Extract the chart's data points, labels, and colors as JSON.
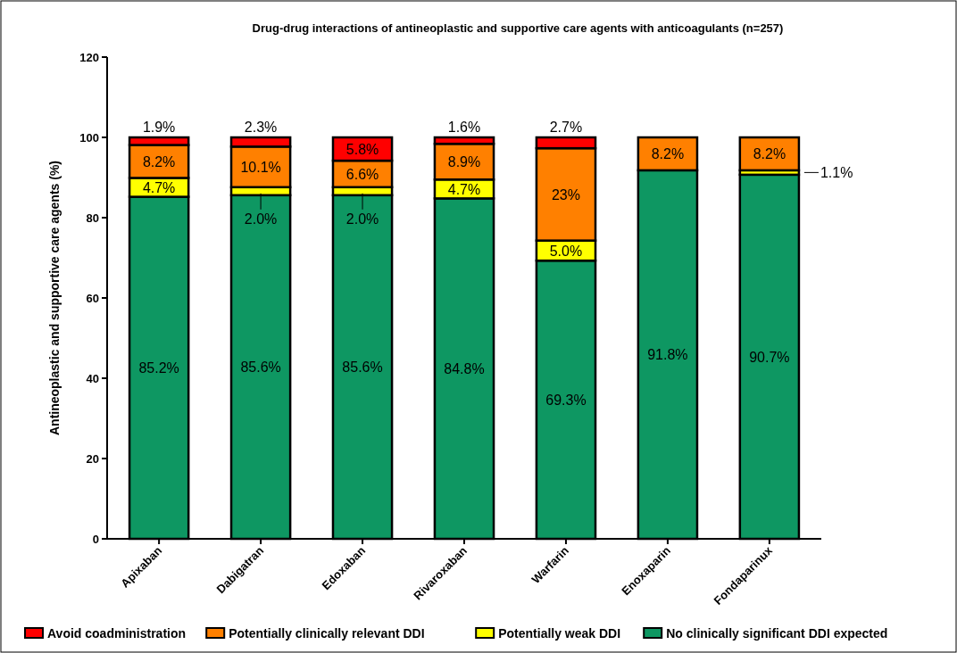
{
  "chart_data": {
    "type": "bar",
    "stacked": true,
    "title": "Drug-drug interactions of antineoplastic and supportive care agents with anticoagulants (n=257)",
    "ylabel": "Antineoplastic and supportive care agents (%)",
    "categories": [
      "Apixaban",
      "Dabigatran",
      "Edoxaban",
      "Rivaroxaban",
      "Warfarin",
      "Enoxaparin",
      "Fondaparinux"
    ],
    "ylim": [
      0,
      120
    ],
    "yticks": [
      0,
      20,
      40,
      60,
      80,
      100,
      120
    ],
    "legend": "bottom",
    "series": [
      {
        "name": "No clinically significant DDI expected",
        "color": "#0e9762",
        "values": [
          85.2,
          85.6,
          85.6,
          84.8,
          69.3,
          91.8,
          90.7
        ],
        "value_labels": [
          "85.2%",
          "85.6%",
          "85.6%",
          "84.8%",
          "69.3%",
          "91.8%",
          "90.7%"
        ]
      },
      {
        "name": "Potentially weak DDI",
        "color": "#ffff00",
        "values": [
          4.7,
          2.0,
          2.0,
          4.7,
          5.0,
          null,
          1.1
        ],
        "value_labels": [
          "4.7%",
          "2.0%",
          "2.0%",
          "4.7%",
          "5.0%",
          null,
          "1.1%"
        ]
      },
      {
        "name": "Potentially clinically relevant DDI",
        "color": "#ff8000",
        "values": [
          8.2,
          10.1,
          6.6,
          8.9,
          23,
          8.2,
          8.2
        ],
        "value_labels": [
          "8.2%",
          "10.1%",
          "6.6%",
          "8.9%",
          "23%",
          "8.2%",
          "8.2%"
        ]
      },
      {
        "name": "Avoid coadministration",
        "color": "#ff0000",
        "values": [
          1.9,
          2.3,
          5.8,
          1.6,
          2.7,
          null,
          null
        ],
        "value_labels": [
          "1.9%",
          "2.3%",
          "5.8%",
          "1.6%",
          "2.7%",
          null,
          null
        ]
      }
    ]
  }
}
